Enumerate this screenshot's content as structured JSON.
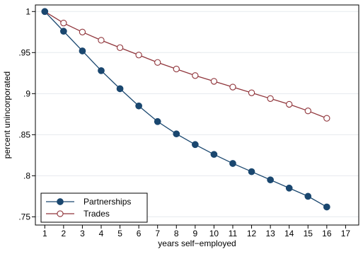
{
  "chart_data": {
    "type": "line",
    "xlabel": "years self−employed",
    "ylabel": "percent unincorporated",
    "xlim": [
      1,
      17
    ],
    "ylim": [
      0.75,
      1.0
    ],
    "xticks": [
      1,
      2,
      3,
      4,
      5,
      6,
      7,
      8,
      9,
      10,
      11,
      12,
      13,
      14,
      15,
      16,
      17
    ],
    "xtick_labels": [
      "1",
      "2",
      "3",
      "4",
      "5",
      "6",
      "7",
      "8",
      "9",
      "10",
      "11",
      "12",
      "13",
      "14",
      "15",
      "16",
      "17"
    ],
    "yticks": [
      0.75,
      0.8,
      0.85,
      0.9,
      0.95,
      1.0
    ],
    "ytick_labels": [
      ".75",
      ".8",
      ".85",
      ".9",
      ".95",
      "1"
    ],
    "grid": true,
    "legend_position": "bottom-left",
    "x": [
      1,
      2,
      3,
      4,
      5,
      6,
      7,
      8,
      9,
      10,
      11,
      12,
      13,
      14,
      15,
      16
    ],
    "series": [
      {
        "name": "Partnerships",
        "marker": "filled-circle",
        "color": "#1a476f",
        "values": [
          1.0,
          0.976,
          0.952,
          0.928,
          0.906,
          0.885,
          0.866,
          0.851,
          0.838,
          0.826,
          0.815,
          0.805,
          0.795,
          0.785,
          0.775,
          0.762
        ]
      },
      {
        "name": "Trades",
        "marker": "hollow-circle",
        "color": "#90353b",
        "values": [
          1.0,
          0.986,
          0.975,
          0.965,
          0.956,
          0.947,
          0.938,
          0.93,
          0.922,
          0.915,
          0.908,
          0.901,
          0.894,
          0.887,
          0.879,
          0.87
        ]
      }
    ]
  }
}
